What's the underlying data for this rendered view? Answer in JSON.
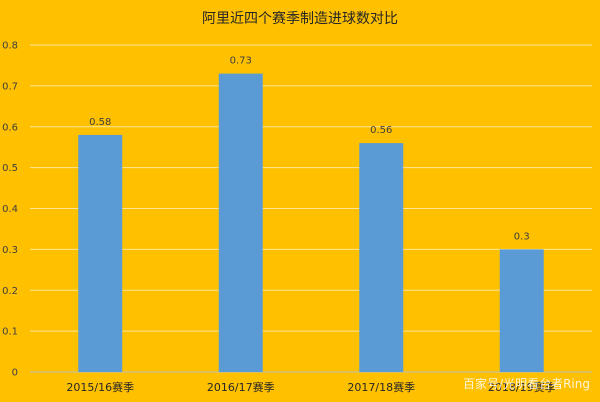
{
  "chart_data": {
    "type": "bar",
    "title": "阿里近四个赛季制造进球数对比",
    "categories": [
      "2015/16赛季",
      "2016/17赛季",
      "2017/18赛季",
      "2018/19赛季"
    ],
    "values": [
      0.58,
      0.73,
      0.56,
      0.3
    ],
    "value_labels": [
      "0.58",
      "0.73",
      "0.56",
      "0.3"
    ],
    "ylim": [
      0,
      0.8
    ],
    "yticks": [
      0,
      0.1,
      0.2,
      0.3,
      0.4,
      0.5,
      0.6,
      0.7,
      0.8
    ],
    "ytick_labels": [
      "0",
      "0.1",
      "0.2",
      "0.3",
      "0.4",
      "0.5",
      "0.6",
      "0.7",
      "0.8"
    ],
    "grid": true,
    "bar_color": "#5B9BD5",
    "grid_color": "#FFE699",
    "background_color": "#FFC000"
  },
  "watermark": "百家号/光明看台者Ring"
}
